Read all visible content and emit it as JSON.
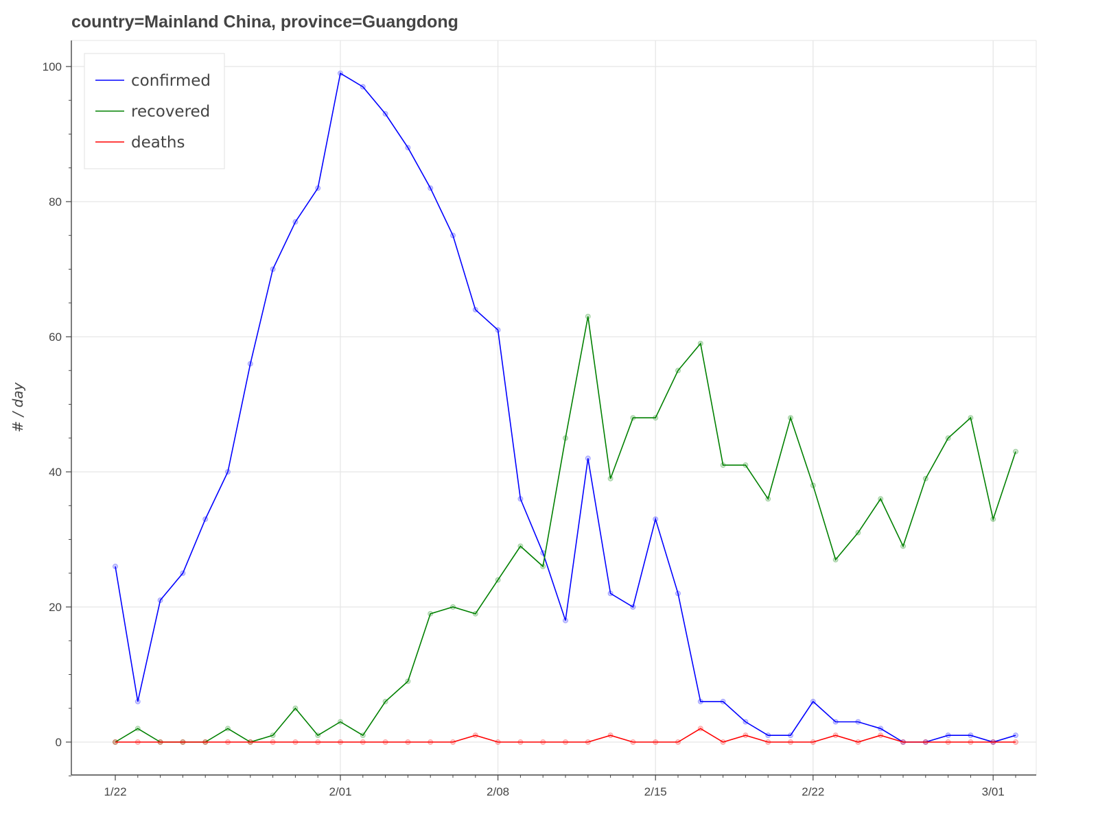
{
  "chart_data": {
    "type": "line",
    "title": "country=Mainland China, province=Guangdong",
    "xlabel": "",
    "ylabel": "# / day",
    "x": [
      "1/22",
      "1/23",
      "1/24",
      "1/25",
      "1/26",
      "1/27",
      "1/28",
      "1/29",
      "1/30",
      "1/31",
      "2/01",
      "2/02",
      "2/03",
      "2/04",
      "2/05",
      "2/06",
      "2/07",
      "2/08",
      "2/09",
      "2/10",
      "2/11",
      "2/12",
      "2/13",
      "2/14",
      "2/15",
      "2/16",
      "2/17",
      "2/18",
      "2/19",
      "2/20",
      "2/21",
      "2/22",
      "2/23",
      "2/24",
      "2/25",
      "2/26",
      "2/27",
      "2/28",
      "2/29",
      "3/01",
      "3/02"
    ],
    "xticks": [
      "1/22",
      "2/01",
      "2/08",
      "2/15",
      "2/22",
      "3/01"
    ],
    "ylim": [
      -5,
      104
    ],
    "yticks": [
      0,
      20,
      40,
      60,
      80,
      100
    ],
    "grid": true,
    "legend_position": "top-left",
    "series": [
      {
        "name": "confirmed",
        "color": "#0000ff",
        "values": [
          26,
          6,
          21,
          25,
          33,
          40,
          56,
          70,
          77,
          82,
          99,
          97,
          93,
          88,
          82,
          75,
          64,
          61,
          36,
          28,
          18,
          42,
          22,
          20,
          33,
          22,
          6,
          6,
          3,
          1,
          1,
          6,
          3,
          3,
          2,
          0,
          0,
          1,
          1,
          0,
          1
        ]
      },
      {
        "name": "recovered",
        "color": "#008000",
        "values": [
          0,
          2,
          0,
          0,
          0,
          2,
          0,
          1,
          5,
          1,
          3,
          1,
          6,
          9,
          19,
          20,
          19,
          24,
          29,
          26,
          45,
          63,
          39,
          48,
          48,
          55,
          59,
          41,
          41,
          36,
          48,
          38,
          27,
          31,
          36,
          29,
          39,
          45,
          48,
          33,
          43
        ]
      },
      {
        "name": "deaths",
        "color": "#ff0000",
        "values": [
          0,
          0,
          0,
          0,
          0,
          0,
          0,
          0,
          0,
          0,
          0,
          0,
          0,
          0,
          0,
          0,
          1,
          0,
          0,
          0,
          0,
          0,
          1,
          0,
          0,
          0,
          2,
          0,
          1,
          0,
          0,
          0,
          1,
          0,
          1,
          0,
          0,
          0,
          0,
          0,
          0
        ]
      }
    ]
  }
}
